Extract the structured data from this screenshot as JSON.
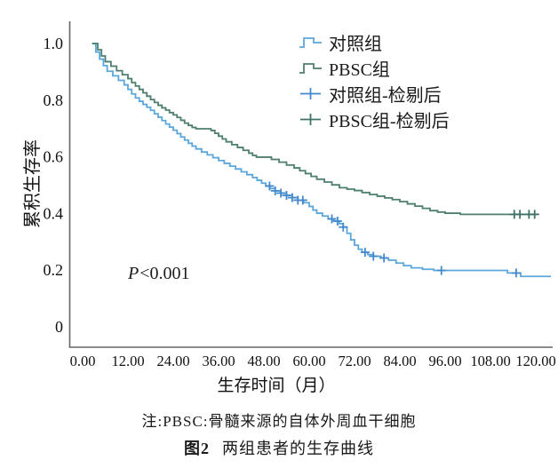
{
  "figure": {
    "note": "注:PBSC:骨髓来源的自体外周血干细胞",
    "caption_label": "图2",
    "caption_title": "两组患者的生存曲线"
  },
  "chart_data": {
    "type": "line",
    "subtype": "kaplan_meier_step",
    "title": "",
    "xlabel": "生存时间（月）",
    "ylabel": "累积生存率",
    "xlim": [
      0,
      126
    ],
    "ylim": [
      0,
      1.0
    ],
    "grid": false,
    "legend_position": "inside-top-right",
    "annotation": {
      "italic": "P",
      "text": "<0.001"
    },
    "x_ticks": [
      {
        "value": 0,
        "label": "0.00"
      },
      {
        "value": 12,
        "label": "12.00"
      },
      {
        "value": 24,
        "label": "24.00"
      },
      {
        "value": 36,
        "label": "36.00"
      },
      {
        "value": 48,
        "label": "48.00"
      },
      {
        "value": 60,
        "label": "60.00"
      },
      {
        "value": 72,
        "label": "72.00"
      },
      {
        "value": 84,
        "label": "84.00"
      },
      {
        "value": 96,
        "label": "96.00"
      },
      {
        "value": 108,
        "label": "108.00"
      },
      {
        "value": 120,
        "label": "120.00"
      }
    ],
    "y_ticks": [
      {
        "value": 1.0,
        "label": "1.0"
      },
      {
        "value": 0.8,
        "label": "0.8"
      },
      {
        "value": 0.6,
        "label": "0.6"
      },
      {
        "value": 0.4,
        "label": "0.4"
      },
      {
        "value": 0.2,
        "label": "0.2"
      },
      {
        "value": 0.0,
        "label": "0"
      }
    ],
    "legend": [
      {
        "label": "对照组",
        "glyph": "step",
        "color": "#5ba7dc"
      },
      {
        "label": "PBSC组",
        "glyph": "step",
        "color": "#4e7f6e"
      },
      {
        "label": "对照组-检剔后",
        "glyph": "plus",
        "color": "#4389cb"
      },
      {
        "label": "PBSC组-检剔后",
        "glyph": "plus",
        "color": "#3f7366"
      }
    ],
    "series": [
      {
        "name": "对照组",
        "color": "#5ba7dc",
        "censor_color": "#4389cb",
        "points": [
          [
            2.5,
            1.0
          ],
          [
            3.5,
            0.97
          ],
          [
            4.5,
            0.945
          ],
          [
            5.5,
            0.922
          ],
          [
            6.5,
            0.902
          ],
          [
            8,
            0.886
          ],
          [
            9.5,
            0.87
          ],
          [
            11,
            0.854
          ],
          [
            12,
            0.838
          ],
          [
            13,
            0.822
          ],
          [
            14,
            0.808
          ],
          [
            15,
            0.796
          ],
          [
            16,
            0.785
          ],
          [
            17,
            0.775
          ],
          [
            18,
            0.764
          ],
          [
            19,
            0.752
          ],
          [
            20,
            0.74
          ],
          [
            21,
            0.728
          ],
          [
            22,
            0.716
          ],
          [
            23,
            0.705
          ],
          [
            24,
            0.694
          ],
          [
            25,
            0.682
          ],
          [
            26,
            0.67
          ],
          [
            27,
            0.659
          ],
          [
            28,
            0.648
          ],
          [
            29,
            0.638
          ],
          [
            30,
            0.628
          ],
          [
            31.5,
            0.617
          ],
          [
            33,
            0.607
          ],
          [
            34.5,
            0.597
          ],
          [
            36,
            0.587
          ],
          [
            37.5,
            0.577
          ],
          [
            39,
            0.567
          ],
          [
            40.5,
            0.557
          ],
          [
            42,
            0.547
          ],
          [
            43.5,
            0.537
          ],
          [
            45,
            0.527
          ],
          [
            46.2,
            0.517
          ],
          [
            47.4,
            0.507
          ],
          [
            48.5,
            0.497
          ],
          [
            49.6,
            0.488
          ],
          [
            51,
            0.48
          ],
          [
            52.5,
            0.472
          ],
          [
            54,
            0.464
          ],
          [
            55.5,
            0.456
          ],
          [
            57,
            0.447
          ],
          [
            58.5,
            0.438
          ],
          [
            60,
            0.425
          ],
          [
            61,
            0.412
          ],
          [
            62,
            0.401
          ],
          [
            63.5,
            0.391
          ],
          [
            65,
            0.381
          ],
          [
            66.5,
            0.373
          ],
          [
            68,
            0.364
          ],
          [
            69,
            0.352
          ],
          [
            70,
            0.33
          ],
          [
            71,
            0.307
          ],
          [
            72,
            0.288
          ],
          [
            73,
            0.274
          ],
          [
            74,
            0.263
          ],
          [
            75.5,
            0.255
          ],
          [
            77,
            0.249
          ],
          [
            79,
            0.243
          ],
          [
            81,
            0.235
          ],
          [
            83,
            0.225
          ],
          [
            85,
            0.216
          ],
          [
            87,
            0.208
          ],
          [
            90,
            0.203
          ],
          [
            93,
            0.199
          ],
          [
            111,
            0.199
          ],
          [
            112.5,
            0.19
          ],
          [
            116,
            0.178
          ],
          [
            124,
            0.178
          ]
        ],
        "censor_times": [
          49.5,
          51,
          52.5,
          54,
          55.5,
          57,
          58.3,
          66,
          67.5,
          69,
          74.8,
          77,
          79.8,
          95,
          114.8
        ]
      },
      {
        "name": "PBSC组",
        "color": "#4e7f6e",
        "censor_color": "#3f7366",
        "points": [
          [
            2.5,
            1.0
          ],
          [
            4,
            0.978
          ],
          [
            5,
            0.956
          ],
          [
            6,
            0.936
          ],
          [
            7.5,
            0.92
          ],
          [
            9,
            0.904
          ],
          [
            10.5,
            0.89
          ],
          [
            12,
            0.876
          ],
          [
            13,
            0.862
          ],
          [
            14,
            0.85
          ],
          [
            15,
            0.838
          ],
          [
            16,
            0.826
          ],
          [
            17,
            0.814
          ],
          [
            18,
            0.802
          ],
          [
            19,
            0.792
          ],
          [
            20,
            0.782
          ],
          [
            21,
            0.773
          ],
          [
            22,
            0.765
          ],
          [
            23,
            0.756
          ],
          [
            24,
            0.748
          ],
          [
            25,
            0.739
          ],
          [
            26,
            0.729
          ],
          [
            27,
            0.719
          ],
          [
            28,
            0.711
          ],
          [
            29,
            0.704
          ],
          [
            30,
            0.699
          ],
          [
            34,
            0.693
          ],
          [
            35,
            0.683
          ],
          [
            36,
            0.673
          ],
          [
            37,
            0.663
          ],
          [
            38,
            0.653
          ],
          [
            39.5,
            0.643
          ],
          [
            41,
            0.633
          ],
          [
            42.5,
            0.623
          ],
          [
            44,
            0.613
          ],
          [
            45,
            0.605
          ],
          [
            46,
            0.599
          ],
          [
            50,
            0.591
          ],
          [
            52,
            0.581
          ],
          [
            54,
            0.571
          ],
          [
            56,
            0.561
          ],
          [
            57.5,
            0.551
          ],
          [
            59,
            0.541
          ],
          [
            60.5,
            0.531
          ],
          [
            62,
            0.521
          ],
          [
            64,
            0.511
          ],
          [
            66,
            0.501
          ],
          [
            68,
            0.491
          ],
          [
            70,
            0.486
          ],
          [
            72,
            0.481
          ],
          [
            74,
            0.474
          ],
          [
            76,
            0.467
          ],
          [
            78,
            0.461
          ],
          [
            80,
            0.455
          ],
          [
            82,
            0.449
          ],
          [
            84,
            0.442
          ],
          [
            86,
            0.434
          ],
          [
            88,
            0.426
          ],
          [
            90,
            0.418
          ],
          [
            92,
            0.41
          ],
          [
            94,
            0.405
          ],
          [
            96,
            0.401
          ],
          [
            100,
            0.397
          ],
          [
            120.5,
            0.397
          ]
        ],
        "censor_times": [
          114.3,
          115.8,
          118.2,
          119.7
        ]
      }
    ]
  }
}
